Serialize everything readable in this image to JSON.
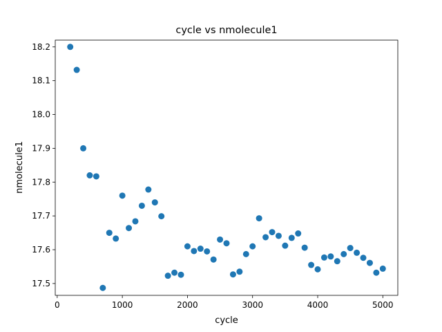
{
  "chart_data": {
    "type": "scatter",
    "title": "cycle vs nmolecule1",
    "xlabel": "cycle",
    "ylabel": "nmolecule1",
    "xlim": [
      -30,
      5230
    ],
    "ylim": [
      17.465,
      18.22
    ],
    "xticks": [
      0,
      1000,
      2000,
      3000,
      4000,
      5000
    ],
    "xtick_labels": [
      "0",
      "1000",
      "2000",
      "3000",
      "4000",
      "5000"
    ],
    "yticks": [
      17.5,
      17.6,
      17.7,
      17.8,
      17.9,
      18.0,
      18.1,
      18.2
    ],
    "ytick_labels": [
      "17.5",
      "17.6",
      "17.7",
      "17.8",
      "17.9",
      "18.0",
      "18.1",
      "18.2"
    ],
    "grid": false,
    "color": "#1f77b4",
    "series": [
      {
        "x": [
          200,
          300,
          400,
          500,
          600,
          700,
          800,
          900,
          1000,
          1100,
          1200,
          1300,
          1400,
          1500,
          1600,
          1700,
          1800,
          1900,
          2000,
          2100,
          2200,
          2300,
          2400,
          2500,
          2600,
          2700,
          2800,
          2900,
          3000,
          3100,
          3200,
          3300,
          3400,
          3500,
          3600,
          3700,
          3800,
          3900,
          4000,
          4100,
          4200,
          4300,
          4400,
          4500,
          4600,
          4700,
          4800,
          4900,
          5000
        ],
        "y": [
          18.2,
          18.132,
          17.9,
          17.82,
          17.817,
          17.487,
          17.65,
          17.633,
          17.76,
          17.664,
          17.684,
          17.73,
          17.778,
          17.74,
          17.699,
          17.523,
          17.532,
          17.526,
          17.61,
          17.596,
          17.603,
          17.595,
          17.571,
          17.63,
          17.619,
          17.527,
          17.535,
          17.587,
          17.61,
          17.693,
          17.637,
          17.652,
          17.641,
          17.612,
          17.635,
          17.648,
          17.606,
          17.555,
          17.542,
          17.577,
          17.58,
          17.566,
          17.587,
          17.605,
          17.591,
          17.576,
          17.561,
          17.532,
          17.544
        ]
      }
    ]
  }
}
